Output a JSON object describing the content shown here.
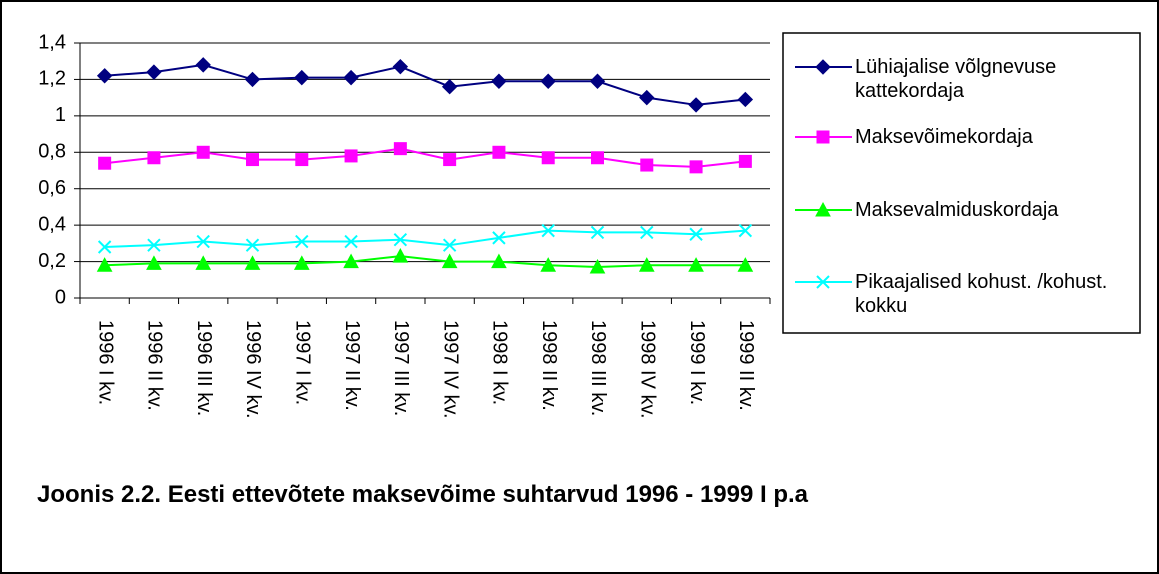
{
  "chart_data": {
    "type": "line",
    "title": "Joonis 2.2. Eesti ettevõtete maksevõime suhtarvud 1996 - 1999 I p.a",
    "categories": [
      "1996 I kv.",
      "1996 II kv.",
      "1996 III kv.",
      "1996 IV kv.",
      "1997 I kv.",
      "1997 II kv.",
      "1997 III kv.",
      "1997 IV kv.",
      "1998 I kv.",
      "1998 II kv.",
      "1998 III kv.",
      "1998 IV kv.",
      "1999 I kv.",
      "1999 II kv."
    ],
    "series": [
      {
        "name": "Lühiajalise võlgnevuse kattekordaja",
        "color": "#000080",
        "marker": "diamond",
        "values": [
          1.22,
          1.24,
          1.28,
          1.2,
          1.21,
          1.21,
          1.27,
          1.16,
          1.19,
          1.19,
          1.19,
          1.1,
          1.06,
          1.09
        ]
      },
      {
        "name": "Maksevõimekordaja",
        "color": "#ff00ff",
        "marker": "square",
        "values": [
          0.74,
          0.77,
          0.8,
          0.76,
          0.76,
          0.78,
          0.82,
          0.76,
          0.8,
          0.77,
          0.77,
          0.73,
          0.72,
          0.75
        ]
      },
      {
        "name": "Maksevalmiduskordaja",
        "color": "#00ff00",
        "marker": "triangle",
        "values": [
          0.18,
          0.19,
          0.19,
          0.19,
          0.19,
          0.2,
          0.23,
          0.2,
          0.2,
          0.18,
          0.17,
          0.18,
          0.18,
          0.18
        ]
      },
      {
        "name": "Pikaajalised kohust. /kohust. kokku",
        "color": "#00ffff",
        "marker": "x",
        "values": [
          0.28,
          0.29,
          0.31,
          0.29,
          0.31,
          0.31,
          0.32,
          0.29,
          0.33,
          0.37,
          0.36,
          0.36,
          0.35,
          0.37
        ]
      }
    ],
    "ylim": [
      0,
      1.4
    ],
    "yticks": [
      0,
      {
        "value": 0.2,
        "label": "0,2"
      },
      {
        "value": 0.4,
        "label": "0,4"
      },
      {
        "value": 0.6,
        "label": "0,6"
      },
      {
        "value": 0.8,
        "label": "0,8"
      },
      1,
      {
        "value": 1.2,
        "label": "1,2"
      },
      {
        "value": 1.4,
        "label": "1,4"
      }
    ],
    "grid": true
  }
}
